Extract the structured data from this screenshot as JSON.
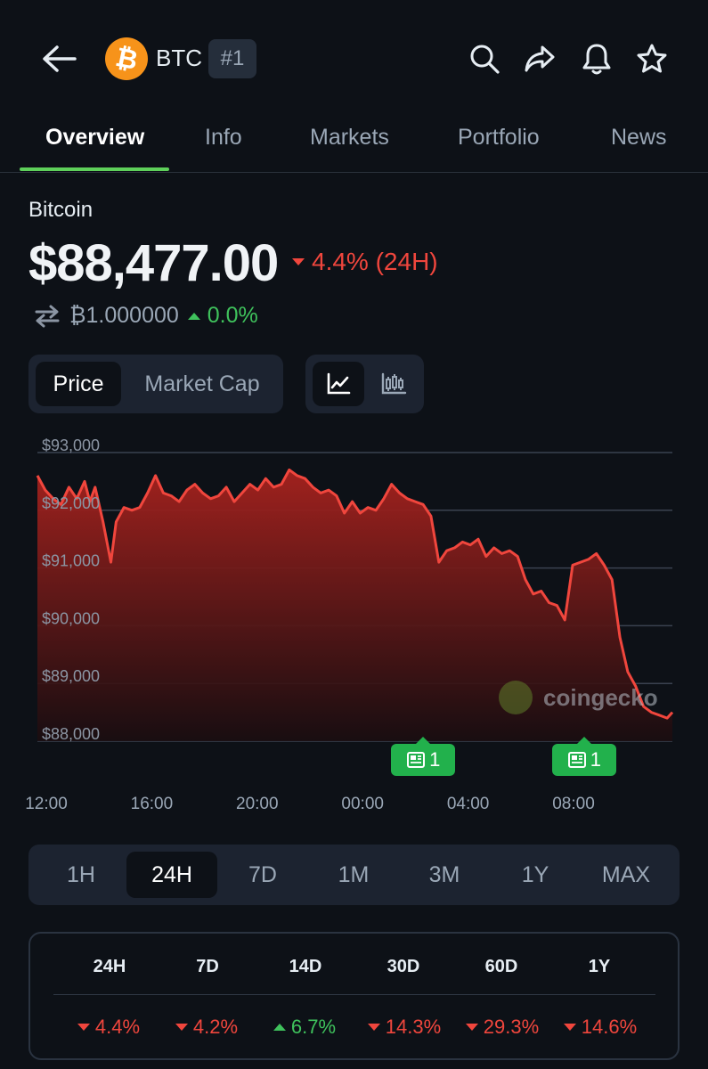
{
  "header": {
    "back_icon": "arrow-left-icon",
    "coin_symbol": "BTC",
    "rank": "#1",
    "coin_logo_glyph": "₿",
    "actions": [
      "search-icon",
      "share-icon",
      "bell-icon",
      "star-icon"
    ]
  },
  "tabs": [
    {
      "label": "Overview",
      "active": true
    },
    {
      "label": "Info",
      "active": false
    },
    {
      "label": "Markets",
      "active": false
    },
    {
      "label": "Portfolio",
      "active": false
    },
    {
      "label": "News",
      "active": false
    }
  ],
  "coin": {
    "name": "Bitcoin",
    "price": "$88,477.00",
    "change_24h": "4.4% (24H)",
    "change_24h_direction": "down",
    "btc_value": "₿1.000000",
    "btc_change": "0.0%",
    "btc_change_direction": "up"
  },
  "chart_toggle": {
    "options": [
      "Price",
      "Market Cap"
    ],
    "selected": "Price",
    "chart_types": [
      "line-chart-icon",
      "candlestick-icon"
    ],
    "selected_type": "line-chart-icon"
  },
  "chart_data": {
    "type": "area",
    "title": "",
    "xlabel": "",
    "ylabel": "",
    "ylim": [
      88000,
      93000
    ],
    "y_ticks": [
      "$93,000",
      "$92,000",
      "$91,000",
      "$90,000",
      "$89,000",
      "$88,000"
    ],
    "y_tick_values": [
      93000,
      92000,
      91000,
      90000,
      89000,
      88000
    ],
    "x_ticks": [
      "12:00",
      "16:00",
      "20:00",
      "00:00",
      "04:00",
      "08:00"
    ],
    "x_tick_hours": [
      0,
      4,
      8,
      12,
      16,
      20
    ],
    "x_hours": [
      0.0,
      0.3,
      0.6,
      0.9,
      1.2,
      1.5,
      1.8,
      2.0,
      2.2,
      2.5,
      2.8,
      3.0,
      3.3,
      3.6,
      3.9,
      4.2,
      4.5,
      4.8,
      5.1,
      5.4,
      5.7,
      6.0,
      6.3,
      6.6,
      6.9,
      7.2,
      7.5,
      7.8,
      8.1,
      8.4,
      8.7,
      9.0,
      9.3,
      9.6,
      9.9,
      10.2,
      10.5,
      10.8,
      11.1,
      11.4,
      11.7,
      12.0,
      12.3,
      12.6,
      12.9,
      13.2,
      13.5,
      13.8,
      14.1,
      14.4,
      14.7,
      15.0,
      15.3,
      15.6,
      15.9,
      16.2,
      16.5,
      16.8,
      17.1,
      17.4,
      17.7,
      18.0,
      18.3,
      18.6,
      18.9,
      19.2,
      19.5,
      19.8,
      20.1,
      20.4,
      20.7,
      21.0,
      21.3,
      21.6,
      21.9,
      22.2,
      22.5,
      22.8,
      23.1,
      23.4,
      23.7,
      24.0,
      24.2
    ],
    "values": [
      92600,
      92350,
      92200,
      92100,
      92400,
      92200,
      92500,
      92150,
      92400,
      91800,
      91100,
      91800,
      92050,
      92000,
      92050,
      92300,
      92600,
      92300,
      92250,
      92150,
      92350,
      92450,
      92300,
      92200,
      92250,
      92400,
      92150,
      92300,
      92450,
      92350,
      92550,
      92400,
      92450,
      92700,
      92600,
      92550,
      92400,
      92300,
      92350,
      92250,
      91950,
      92150,
      91950,
      92050,
      92000,
      92200,
      92450,
      92300,
      92200,
      92150,
      92100,
      91900,
      91100,
      91300,
      91350,
      91450,
      91400,
      91500,
      91200,
      91350,
      91250,
      91300,
      91200,
      90800,
      90550,
      90600,
      90400,
      90350,
      90100,
      91050,
      91100,
      91150,
      91250,
      91050,
      90800,
      89800,
      89200,
      88950,
      88600,
      88500,
      88450,
      88400,
      88500
    ],
    "series_color": "#f0463d",
    "grid": true,
    "news_markers": [
      {
        "hour": 14.3,
        "count": "1"
      },
      {
        "hour": 20.4,
        "count": "1"
      }
    ]
  },
  "watermark": "coingecko",
  "ranges": [
    {
      "label": "1H",
      "active": false
    },
    {
      "label": "24H",
      "active": true
    },
    {
      "label": "7D",
      "active": false
    },
    {
      "label": "1M",
      "active": false
    },
    {
      "label": "3M",
      "active": false
    },
    {
      "label": "1Y",
      "active": false
    },
    {
      "label": "MAX",
      "active": false
    }
  ],
  "performance": [
    {
      "period": "24H",
      "value": "4.4%",
      "direction": "down"
    },
    {
      "period": "7D",
      "value": "4.2%",
      "direction": "down"
    },
    {
      "period": "14D",
      "value": "6.7%",
      "direction": "up"
    },
    {
      "period": "30D",
      "value": "14.3%",
      "direction": "down"
    },
    {
      "period": "60D",
      "value": "29.3%",
      "direction": "down"
    },
    {
      "period": "1Y",
      "value": "14.6%",
      "direction": "down"
    }
  ],
  "colors": {
    "background": "#0d1117",
    "negative": "#f0463d",
    "positive": "#3fc25c",
    "accent": "#5ed05a",
    "btc_orange": "#f7931a"
  }
}
